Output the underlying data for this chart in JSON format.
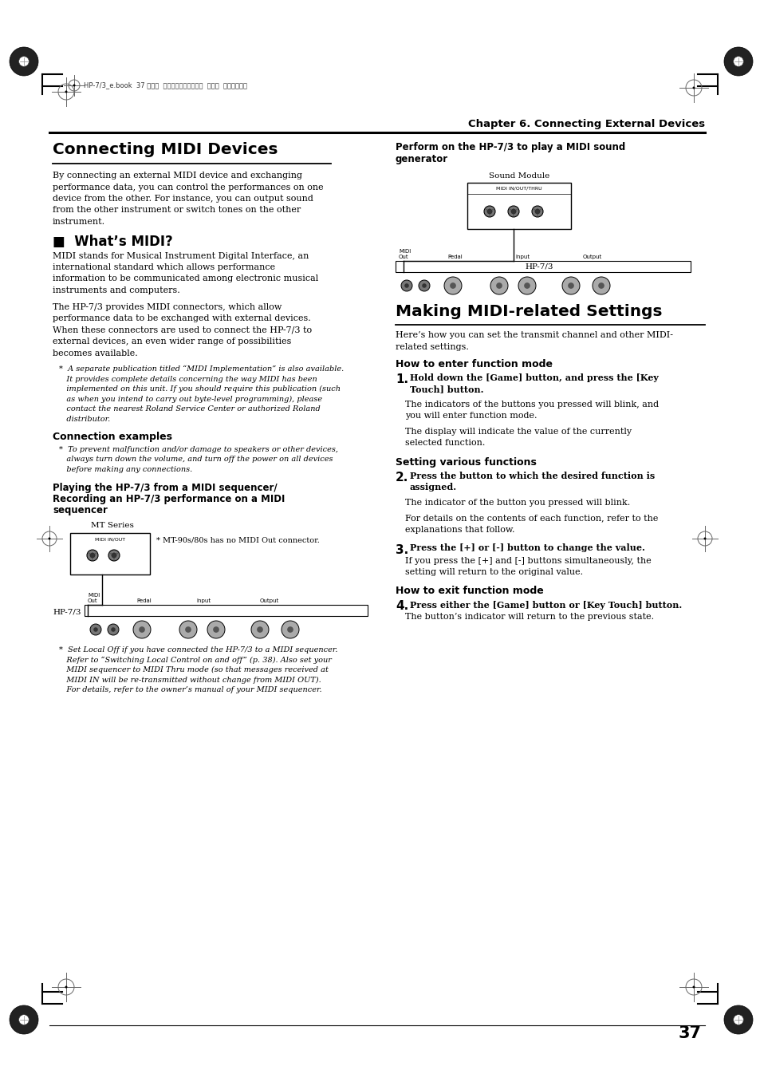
{
  "page_bg": "#ffffff",
  "page_width": 9.54,
  "page_height": 13.51,
  "dpi": 100,
  "header_text": "HP-7/3_e.book  37 ページ  ２００４年１月２６日  月曜日  午後５時１分",
  "chapter_title": "Chapter 6. Connecting External Devices",
  "section1_title": "Connecting MIDI Devices",
  "section1_body1": "By connecting an external MIDI device and exchanging\nperformance data, you can control the performances on one\ndevice from the other. For instance, you can output sound\nfrom the other instrument or switch tones on the other\ninstrument.",
  "subsection1_title": "■  What’s MIDI?",
  "subsection1_body1": "MIDI stands for Musical Instrument Digital Interface, an\ninternational standard which allows performance\ninformation to be communicated among electronic musical\ninstruments and computers.",
  "subsection1_body2": "The HP-7/3 provides MIDI connectors, which allow\nperformance data to be exchanged with external devices.\nWhen these connectors are used to connect the HP-7/3 to\nexternal devices, an even wider range of possibilities\nbecomes available.",
  "subsection1_note": "*  A separate publication titled “MIDI Implementation” is also available.\n   It provides complete details concerning the way MIDI has been\n   implemented on this unit. If you should require this publication (such\n   as when you intend to carry out byte-level programming), please\n   contact the nearest Roland Service Center or authorized Roland\n   distributor.",
  "conn_examples_title": "Connection examples",
  "conn_examples_note": "*  To prevent malfunction and/or damage to speakers or other devices,\n   always turn down the volume, and turn off the power on all devices\n   before making any connections.",
  "playing_title": "Playing the HP-7/3 from a MIDI sequencer/\nRecording an HP-7/3 performance on a MIDI\nsequencer",
  "mt_series_label": "MT Series",
  "mt_note": "* MT-90s/80s has no MIDI Out connector.",
  "hp73_label_left": "HP-7/3",
  "sequencer_note": "*  Set Local Off if you have connected the HP-7/3 to a MIDI sequencer.\n   Refer to “Switching Local Control on and off” (p. 38). Also set your\n   MIDI sequencer to MIDI Thru mode (so that messages received at\n   MIDI IN will be re-transmitted without change from MIDI OUT).\n   For details, refer to the owner’s manual of your MIDI sequencer.",
  "right_col_subhead": "Perform on the HP-7/3 to play a MIDI sound\ngenerator",
  "sound_module_label": "Sound Module",
  "hp73_label_right": "HP-7/3",
  "section2_title": "Making MIDI-related Settings",
  "section2_intro": "Here’s how you can set the transmit channel and other MIDI-\nrelated settings.",
  "how_enter_title": "How to enter function mode",
  "step1_num": "1.",
  "step1_text": "Hold down the [Game] button, and press the [Key\nTouch] button.",
  "step1_body1": "The indicators of the buttons you pressed will blink, and\nyou will enter function mode.",
  "step1_body2": "The display will indicate the value of the currently\nselected function.",
  "setting_title": "Setting various functions",
  "step2_num": "2.",
  "step2_text": "Press the button to which the desired function is\nassigned.",
  "step2_body1": "The indicator of the button you pressed will blink.",
  "step2_body2": "For details on the contents of each function, refer to the\nexplanations that follow.",
  "step3_num": "3.",
  "step3_text": "Press the [+] or [-] button to change the value.",
  "step3_body1": "If you press the [+] and [-] buttons simultaneously, the\nsetting will return to the original value.",
  "how_exit_title": "How to exit function mode",
  "step4_num": "4.",
  "step4_text": "Press either the [Game] button or [Key Touch] button.",
  "step4_body1": "The button’s indicator will return to the previous state.",
  "page_number": "37",
  "colors": {
    "black": "#000000",
    "white": "#ffffff",
    "gray": "#888888",
    "dark_gray": "#333333",
    "light_gray": "#cccccc"
  }
}
